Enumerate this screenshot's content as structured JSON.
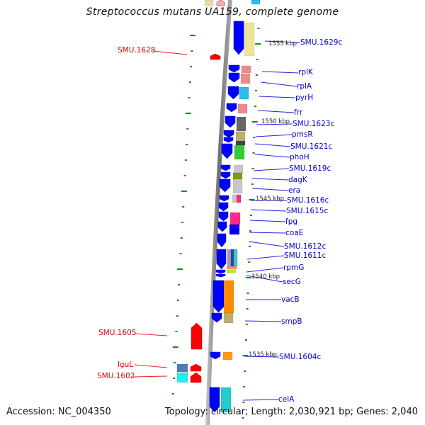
{
  "title": "Streptococcus mutans UA159, complete genome",
  "footer": {
    "accession": "Accession: NC_004350",
    "summary": "Topology: circular; Length: 2,030,921 bp; Genes: 2,040"
  },
  "colors": {
    "forward_label": "#0000cc",
    "reverse_label": "#dd0000",
    "backbone": "#888888",
    "tick": "#1a8a1a",
    "cds_forward": "#0000ff",
    "cds_reverse": "#ff0000"
  },
  "scale_markers": [
    {
      "label": "1555 kbp"
    },
    {
      "label": "1550 kbp"
    },
    {
      "label": "1545 kbp"
    },
    {
      "label": "1540 kbp"
    },
    {
      "label": "1535 kbp"
    }
  ],
  "forward_genes": [
    {
      "name": "SMU.1629c"
    },
    {
      "name": "rplK"
    },
    {
      "name": "rplA"
    },
    {
      "name": "pyrH"
    },
    {
      "name": "frr"
    },
    {
      "name": "SMU.1623c"
    },
    {
      "name": "pmsR"
    },
    {
      "name": "SMU.1621c"
    },
    {
      "name": "phoH"
    },
    {
      "name": "SMU.1619c"
    },
    {
      "name": "dagK"
    },
    {
      "name": "era"
    },
    {
      "name": "SMU.1616c"
    },
    {
      "name": "SMU.1615c"
    },
    {
      "name": "fpg"
    },
    {
      "name": "coaE"
    },
    {
      "name": "SMU.1612c"
    },
    {
      "name": "SMU.1611c"
    },
    {
      "name": "rpmG"
    },
    {
      "name": "secG"
    },
    {
      "name": "vacB"
    },
    {
      "name": "smpB"
    },
    {
      "name": "SMU.1604c"
    },
    {
      "name": "celA"
    }
  ],
  "reverse_genes": [
    {
      "name": "SMU.1628"
    },
    {
      "name": "SMU.1605"
    },
    {
      "name": "lguL"
    },
    {
      "name": "SMU.1602"
    }
  ]
}
